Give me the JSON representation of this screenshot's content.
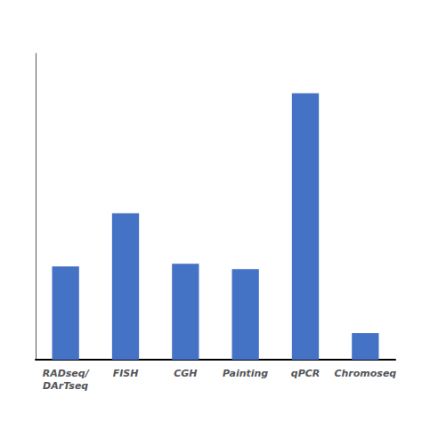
{
  "chart_data": {
    "type": "bar",
    "categories": [
      "RADseq/\nDArTseq",
      "FISH",
      "CGH",
      "Painting",
      "qPCR",
      "Chromoseq"
    ],
    "values": [
      7,
      11,
      7.2,
      6.8,
      20,
      2
    ],
    "color": "#4472C4",
    "ylim": [
      0,
      23
    ],
    "grid": false,
    "tick_labels": "x"
  }
}
